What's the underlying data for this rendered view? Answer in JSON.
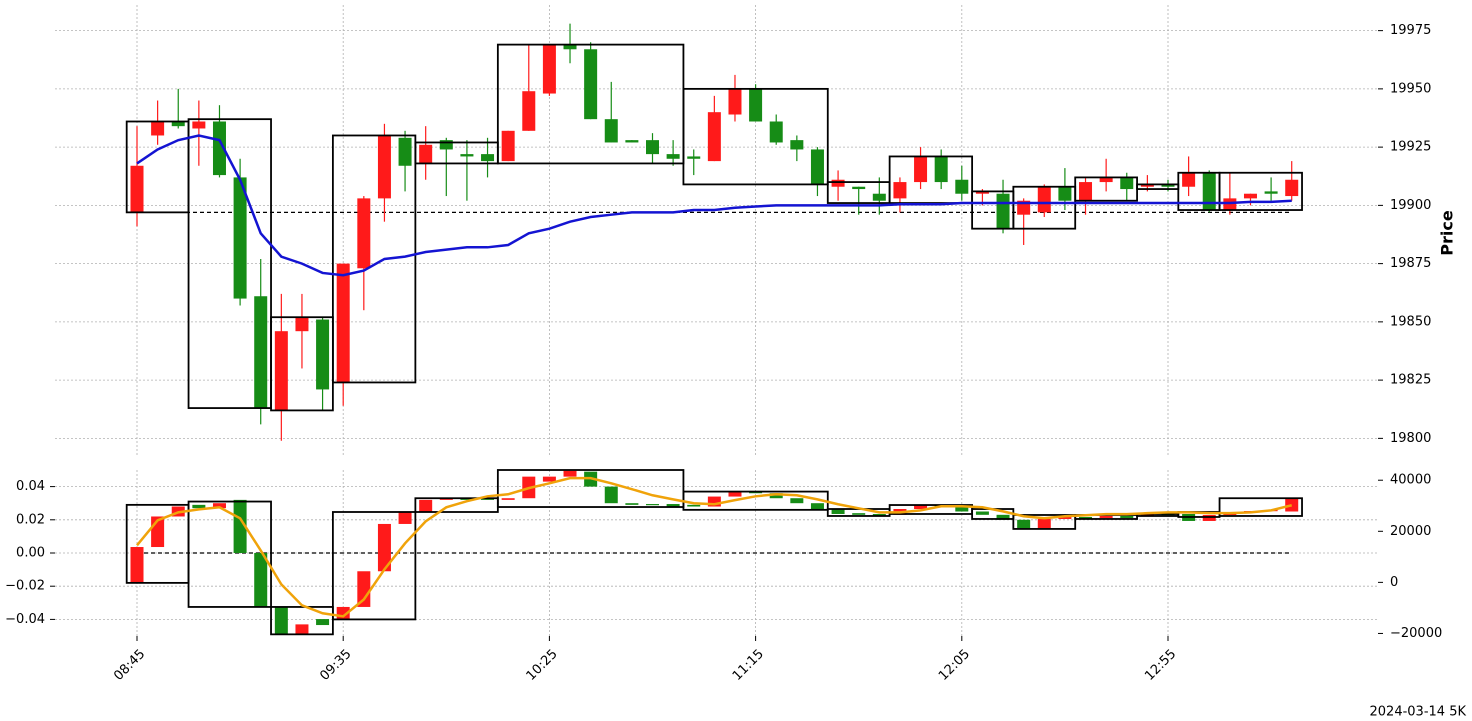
{
  "chart_data": [
    {
      "type": "candlestick",
      "ylabel": "Price",
      "ylim": [
        19792,
        19986
      ],
      "yticks": [
        19800,
        19825,
        19850,
        19875,
        19900,
        19925,
        19950,
        19975
      ],
      "grid": true,
      "up_color": "#ff1a1a",
      "down_color": "#168c16",
      "open": [
        19897,
        19930,
        19936,
        19933,
        19936,
        19912,
        19861,
        19812,
        19846,
        19851,
        19824,
        19873,
        19903,
        19929,
        19918,
        19928,
        19922,
        19922,
        19919,
        19932,
        19948,
        19969,
        19967,
        19937,
        19928,
        19928,
        19922,
        19921,
        19919,
        19939,
        19950,
        19936,
        19928,
        19924,
        19908,
        19908,
        19905,
        19903,
        19910,
        19921,
        19911,
        19905,
        19905,
        19896,
        19897,
        19908,
        19902,
        19910,
        19912,
        19908,
        19909,
        19908,
        19914,
        19898,
        19903,
        19906,
        19904
      ],
      "high": [
        19934,
        19945,
        19950,
        19945,
        19943,
        19920,
        19877,
        19862,
        19862,
        19852,
        19875,
        19904,
        19935,
        19932,
        19934,
        19929,
        19928,
        19929,
        19932,
        19969,
        19969,
        19978,
        19970,
        19953,
        19928,
        19931,
        19928,
        19924,
        19947,
        19956,
        19952,
        19939,
        19930,
        19925,
        19915,
        19908,
        19912,
        19912,
        19925,
        19924,
        19917,
        19907,
        19911,
        19903,
        19909,
        19916,
        19912,
        19920,
        19914,
        19913,
        19911,
        19921,
        19915,
        19914,
        19905,
        19912,
        19919
      ],
      "low": [
        19891,
        19926,
        19933,
        19917,
        19912,
        19857,
        19806,
        19799,
        19830,
        19812,
        19814,
        19855,
        19893,
        19906,
        19911,
        19904,
        19902,
        19912,
        19919,
        19932,
        19947,
        19961,
        19937,
        19927,
        19927,
        19918,
        19917,
        19913,
        19919,
        19936,
        19936,
        19926,
        19919,
        19904,
        19902,
        19896,
        19896,
        19897,
        19907,
        19907,
        19902,
        19900,
        19888,
        19883,
        19895,
        19898,
        19896,
        19906,
        19902,
        19906,
        19906,
        19904,
        19897,
        19896,
        19900,
        19902,
        19902
      ],
      "close": [
        19917,
        19936,
        19934,
        19936,
        19913,
        19860,
        19813,
        19846,
        19852,
        19821,
        19875,
        19903,
        19930,
        19917,
        19926,
        19924,
        19921,
        19919,
        19932,
        19949,
        19969,
        19967,
        19937,
        19927,
        19927,
        19922,
        19920,
        19920,
        19940,
        19950,
        19936,
        19927,
        19924,
        19909,
        19911,
        19907,
        19902,
        19910,
        19921,
        19910,
        19905,
        19906,
        19890,
        19902,
        19908,
        19902,
        19910,
        19912,
        19907,
        19909,
        19908,
        19914,
        19898,
        19903,
        19905,
        19905,
        19911
      ],
      "series": [
        {
          "color": "#1414d2",
          "values": [
            19918,
            19924,
            19928,
            19930,
            19928,
            19911,
            19888,
            19878,
            19875,
            19871,
            19870,
            19872,
            19877,
            19878,
            19880,
            19881,
            19882,
            19882,
            19883,
            19888,
            19890,
            19893,
            19895,
            19896,
            19897,
            19897,
            19897,
            19898,
            19898,
            19899,
            19899.5,
            19900,
            19900,
            19900,
            19900,
            19900,
            19900,
            19900.5,
            19900.5,
            19900.5,
            19901,
            19901,
            19901,
            19901,
            19901,
            19901,
            19901,
            19901,
            19901,
            19901,
            19901,
            19901,
            19901,
            19901,
            19901.5,
            19901.5,
            19902
          ]
        }
      ],
      "reference_line": 19897,
      "boxes": [
        {
          "from": 0,
          "to": 2,
          "low": 19897,
          "high": 19936
        },
        {
          "from": 3,
          "to": 6,
          "low": 19813,
          "high": 19937
        },
        {
          "from": 7,
          "to": 9,
          "low": 19812,
          "high": 19852
        },
        {
          "from": 10,
          "to": 13,
          "low": 19824,
          "high": 19930
        },
        {
          "from": 14,
          "to": 17,
          "low": 19918,
          "high": 19927
        },
        {
          "from": 18,
          "to": 26,
          "low": 19918,
          "high": 19969
        },
        {
          "from": 27,
          "to": 33,
          "low": 19909,
          "high": 19950
        },
        {
          "from": 34,
          "to": 36,
          "low": 19901,
          "high": 19910
        },
        {
          "from": 37,
          "to": 40,
          "low": 19901,
          "high": 19921
        },
        {
          "from": 41,
          "to": 42,
          "low": 19890,
          "high": 19906
        },
        {
          "from": 43,
          "to": 45,
          "low": 19890,
          "high": 19908
        },
        {
          "from": 46,
          "to": 48,
          "low": 19902,
          "high": 19912
        },
        {
          "from": 49,
          "to": 50,
          "low": 19907,
          "high": 19909
        },
        {
          "from": 51,
          "to": 52,
          "low": 19898,
          "high": 19914
        },
        {
          "from": 53,
          "to": 56,
          "low": 19898,
          "high": 19914
        }
      ]
    },
    {
      "type": "candlestick",
      "categories": [
        "08:45",
        null,
        null,
        null,
        null,
        null,
        null,
        null,
        null,
        null,
        "09:35",
        null,
        null,
        null,
        null,
        null,
        null,
        null,
        null,
        null,
        "10:25",
        null,
        null,
        null,
        null,
        null,
        null,
        null,
        null,
        null,
        "11:15",
        null,
        null,
        null,
        null,
        null,
        null,
        null,
        null,
        null,
        "12:05",
        null,
        null,
        null,
        null,
        null,
        null,
        null,
        null,
        null,
        "12:55",
        null,
        null,
        null,
        null,
        null,
        null
      ],
      "ylim": [
        -0.05,
        0.05
      ],
      "yticks": [
        {
          "value": -0.04,
          "label": "−0.04"
        },
        {
          "value": -0.02,
          "label": "−0.02"
        },
        {
          "value": 0,
          "label": "0.00"
        },
        {
          "value": 0.02,
          "label": "0.02"
        },
        {
          "value": 0.04,
          "label": "0.04"
        }
      ],
      "y2lim": [
        -21000,
        44000
      ],
      "y2ticks": [
        {
          "value": -20000,
          "label": "−20000"
        },
        0,
        20000,
        40000
      ],
      "grid": true,
      "up_color": "#ff1a1a",
      "down_color": "#168c16",
      "open": [
        -0.018,
        0.0036,
        0.022,
        0.029,
        0.027,
        0.032,
        0,
        -0.0325,
        -0.049,
        -0.0398,
        -0.0398,
        -0.0325,
        -0.011,
        0.0175,
        0.0247,
        0.032,
        0.033,
        0.033,
        0.032,
        0.033,
        0.043,
        0.046,
        0.049,
        0.04,
        0.03,
        0.0295,
        0.0295,
        0.029,
        0.028,
        0.034,
        0.037,
        0.036,
        0.033,
        0.03,
        0.0265,
        0.024,
        0.0235,
        0.023,
        0.0265,
        0.029,
        0.028,
        0.025,
        0.023,
        0.02,
        0.015,
        0.0205,
        0.0217,
        0.0211,
        0.0223,
        0.0223,
        0.0235,
        0.0235,
        0.0193,
        0.0229,
        0.0241,
        0.0253,
        0.025
      ],
      "close": [
        0.0036,
        0.022,
        0.028,
        0.027,
        0.03,
        0,
        -0.0325,
        -0.049,
        -0.043,
        -0.0434,
        -0.0325,
        -0.011,
        0.0175,
        0.0247,
        0.032,
        0.033,
        0.032,
        0.032,
        0.033,
        0.046,
        0.046,
        0.0495,
        0.04,
        0.03,
        0.029,
        0.029,
        0.028,
        0.028,
        0.034,
        0.037,
        0.036,
        0.033,
        0.03,
        0.0265,
        0.0235,
        0.023,
        0.0223,
        0.0265,
        0.029,
        0.028,
        0.025,
        0.023,
        0.02,
        0.015,
        0.0205,
        0.0217,
        0.0205,
        0.0223,
        0.0211,
        0.0235,
        0.0229,
        0.0193,
        0.0229,
        0.0241,
        0.0253,
        0.0259,
        0.033
      ],
      "series": [
        {
          "color": "#f0a30a",
          "axis": "y2",
          "values": [
            14500,
            24300,
            27400,
            28600,
            29400,
            25100,
            12500,
            -800,
            -9000,
            -12100,
            -13300,
            -6700,
            5100,
            15300,
            23900,
            29400,
            31800,
            33700,
            34500,
            36900,
            38800,
            40800,
            40800,
            38800,
            36500,
            34100,
            32500,
            31000,
            30600,
            32200,
            33700,
            34500,
            34100,
            32500,
            30600,
            29000,
            27400,
            27400,
            28200,
            29800,
            29800,
            29400,
            27800,
            25900,
            25100,
            25900,
            26300,
            26700,
            26700,
            27100,
            27400,
            27400,
            27100,
            27100,
            27400,
            28200,
            30200
          ]
        }
      ],
      "reference_line": 0,
      "boxes": [
        {
          "from": 0,
          "to": 2,
          "low": -0.018,
          "high": 0.029
        },
        {
          "from": 3,
          "to": 6,
          "low": -0.0325,
          "high": 0.031
        },
        {
          "from": 7,
          "to": 9,
          "low": -0.049,
          "high": -0.0325
        },
        {
          "from": 10,
          "to": 13,
          "low": -0.04,
          "high": 0.0247
        },
        {
          "from": 14,
          "to": 17,
          "low": 0.0247,
          "high": 0.033
        },
        {
          "from": 18,
          "to": 26,
          "low": 0.0277,
          "high": 0.05
        },
        {
          "from": 27,
          "to": 33,
          "low": 0.026,
          "high": 0.037
        },
        {
          "from": 34,
          "to": 36,
          "low": 0.0223,
          "high": 0.0265
        },
        {
          "from": 37,
          "to": 40,
          "low": 0.0235,
          "high": 0.0289
        },
        {
          "from": 41,
          "to": 42,
          "low": 0.0205,
          "high": 0.0265
        },
        {
          "from": 43,
          "to": 45,
          "low": 0.0145,
          "high": 0.0229
        },
        {
          "from": 46,
          "to": 48,
          "low": 0.0205,
          "high": 0.0229
        },
        {
          "from": 49,
          "to": 50,
          "low": 0.0223,
          "high": 0.0235
        },
        {
          "from": 51,
          "to": 52,
          "low": 0.0217,
          "high": 0.0247
        },
        {
          "from": 53,
          "to": 56,
          "low": 0.0223,
          "high": 0.033
        }
      ],
      "footer": "2024-03-14 5K"
    }
  ]
}
